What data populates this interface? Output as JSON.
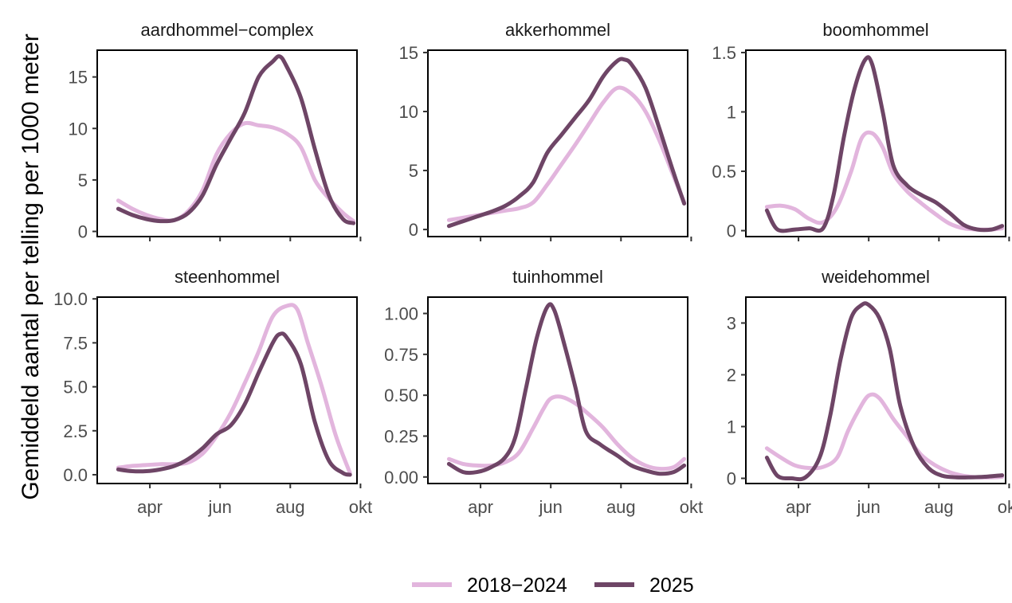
{
  "figure": {
    "ylabel": "Gemiddeld aantal per telling per 1000 meter",
    "x_ticks": [
      "apr",
      "jun",
      "aug",
      "okt"
    ],
    "legend": [
      {
        "label": "2018−2024",
        "color": "#e2b5dd"
      },
      {
        "label": "2025",
        "color": "#6e4566"
      }
    ]
  },
  "chart_data": [
    {
      "type": "line",
      "title": "aardhommel−complex",
      "xlim": [
        2.5,
        9.9
      ],
      "ylim": [
        -0.5,
        17.6
      ],
      "yticks": [
        0,
        5,
        10,
        15
      ],
      "x_ticks": [
        4,
        6,
        8,
        10
      ],
      "x_labels": [
        "apr",
        "jun",
        "aug",
        "okt"
      ],
      "show_x_labels": false,
      "series": [
        {
          "name": "2018−2024",
          "color": "#e2b5dd",
          "x": [
            3.1,
            3.5,
            3.9,
            4.3,
            4.7,
            5.1,
            5.5,
            5.9,
            6.3,
            6.7,
            7.1,
            7.5,
            7.9,
            8.3,
            8.7,
            9.1,
            9.5,
            9.8
          ],
          "y": [
            3.0,
            2.2,
            1.6,
            1.2,
            1.1,
            2.0,
            4.0,
            7.5,
            9.5,
            10.5,
            10.3,
            10.1,
            9.5,
            8.2,
            5.0,
            3.2,
            1.8,
            1.0
          ]
        },
        {
          "name": "2025",
          "color": "#6e4566",
          "x": [
            3.1,
            3.5,
            3.9,
            4.3,
            4.7,
            5.1,
            5.5,
            5.9,
            6.3,
            6.7,
            7.1,
            7.5,
            7.7,
            7.9,
            8.3,
            8.7,
            9.1,
            9.5,
            9.8
          ],
          "y": [
            2.2,
            1.6,
            1.2,
            1.0,
            1.1,
            1.8,
            3.5,
            6.5,
            9.0,
            11.5,
            15.0,
            16.5,
            17.0,
            16.0,
            13.0,
            8.0,
            3.5,
            1.2,
            0.8
          ]
        }
      ]
    },
    {
      "type": "line",
      "title": "akkerhommel",
      "xlim": [
        2.5,
        9.9
      ],
      "ylim": [
        -0.6,
        15.2
      ],
      "yticks": [
        0,
        5,
        10,
        15
      ],
      "x_ticks": [
        4,
        6,
        8,
        10
      ],
      "x_labels": [
        "apr",
        "jun",
        "aug",
        "okt"
      ],
      "show_x_labels": false,
      "series": [
        {
          "name": "2018−2024",
          "color": "#e2b5dd",
          "x": [
            3.1,
            3.5,
            3.9,
            4.3,
            4.7,
            5.1,
            5.5,
            5.9,
            6.3,
            6.7,
            7.1,
            7.5,
            7.9,
            8.3,
            8.7,
            9.1,
            9.5,
            9.8
          ],
          "y": [
            0.8,
            1.0,
            1.2,
            1.4,
            1.6,
            1.8,
            2.3,
            3.8,
            5.5,
            7.2,
            9.0,
            10.8,
            12.0,
            11.5,
            10.0,
            7.5,
            4.5,
            2.3
          ]
        },
        {
          "name": "2025",
          "color": "#6e4566",
          "x": [
            3.1,
            3.5,
            3.9,
            4.3,
            4.7,
            5.1,
            5.5,
            5.9,
            6.3,
            6.7,
            7.1,
            7.5,
            7.9,
            8.1,
            8.3,
            8.7,
            9.1,
            9.5,
            9.8
          ],
          "y": [
            0.3,
            0.7,
            1.1,
            1.5,
            2.0,
            2.8,
            4.0,
            6.5,
            8.0,
            9.5,
            11.0,
            13.0,
            14.3,
            14.4,
            14.0,
            12.0,
            8.5,
            4.8,
            2.2
          ]
        }
      ]
    },
    {
      "type": "line",
      "title": "boomhommel",
      "xlim": [
        2.5,
        9.9
      ],
      "ylim": [
        -0.05,
        1.52
      ],
      "yticks": [
        0.0,
        0.5,
        1.0,
        1.5
      ],
      "x_ticks": [
        4,
        6,
        8,
        10
      ],
      "x_labels": [
        "apr",
        "jun",
        "aug",
        "okt"
      ],
      "show_x_labels": false,
      "series": [
        {
          "name": "2018−2024",
          "color": "#e2b5dd",
          "x": [
            3.1,
            3.5,
            3.9,
            4.3,
            4.7,
            5.1,
            5.5,
            5.8,
            6.1,
            6.4,
            6.7,
            7.1,
            7.5,
            7.9,
            8.3,
            8.7,
            9.1,
            9.5,
            9.8
          ],
          "y": [
            0.2,
            0.21,
            0.18,
            0.1,
            0.07,
            0.2,
            0.5,
            0.78,
            0.82,
            0.7,
            0.48,
            0.33,
            0.23,
            0.14,
            0.06,
            0.02,
            0.01,
            0.01,
            0.02
          ]
        },
        {
          "name": "2025",
          "color": "#6e4566",
          "x": [
            3.1,
            3.4,
            3.9,
            4.3,
            4.7,
            5.0,
            5.3,
            5.6,
            5.9,
            6.1,
            6.4,
            6.7,
            7.1,
            7.5,
            7.9,
            8.3,
            8.7,
            9.1,
            9.5,
            9.8
          ],
          "y": [
            0.17,
            0.01,
            0.01,
            0.02,
            0.02,
            0.3,
            0.8,
            1.2,
            1.44,
            1.4,
            1.0,
            0.55,
            0.38,
            0.3,
            0.24,
            0.15,
            0.05,
            0.01,
            0.01,
            0.04
          ]
        }
      ]
    },
    {
      "type": "line",
      "title": "steenhommel",
      "xlim": [
        2.5,
        9.9
      ],
      "ylim": [
        -0.5,
        10.1
      ],
      "yticks": [
        0.0,
        2.5,
        5.0,
        7.5,
        10.0
      ],
      "ytick_labels": [
        "0.0",
        "2.5",
        "5.0",
        "7.5",
        "10.0"
      ],
      "x_ticks": [
        4,
        6,
        8,
        10
      ],
      "x_labels": [
        "apr",
        "jun",
        "aug",
        "okt"
      ],
      "show_x_labels": true,
      "series": [
        {
          "name": "2018−2024",
          "color": "#e2b5dd",
          "x": [
            3.1,
            3.5,
            3.9,
            4.3,
            4.7,
            5.1,
            5.5,
            5.9,
            6.3,
            6.7,
            7.1,
            7.5,
            7.9,
            8.2,
            8.5,
            8.9,
            9.3,
            9.7
          ],
          "y": [
            0.4,
            0.5,
            0.55,
            0.6,
            0.6,
            0.7,
            1.2,
            2.2,
            3.5,
            5.2,
            7.0,
            9.0,
            9.6,
            9.4,
            7.5,
            5.0,
            2.2,
            0.1
          ]
        },
        {
          "name": "2025",
          "color": "#6e4566",
          "x": [
            3.1,
            3.5,
            3.9,
            4.3,
            4.7,
            5.1,
            5.5,
            5.9,
            6.3,
            6.7,
            7.1,
            7.5,
            7.7,
            7.9,
            8.3,
            8.7,
            9.1,
            9.5,
            9.7
          ],
          "y": [
            0.3,
            0.2,
            0.2,
            0.3,
            0.5,
            0.9,
            1.5,
            2.3,
            2.8,
            4.0,
            5.8,
            7.5,
            8.0,
            7.8,
            6.3,
            3.0,
            0.8,
            0.1,
            0.0
          ]
        }
      ]
    },
    {
      "type": "line",
      "title": "tuinhommel",
      "xlim": [
        2.5,
        9.9
      ],
      "ylim": [
        -0.04,
        1.1
      ],
      "yticks": [
        0.0,
        0.25,
        0.5,
        0.75,
        1.0
      ],
      "ytick_labels": [
        "0.00",
        "0.25",
        "0.50",
        "0.75",
        "1.00"
      ],
      "x_ticks": [
        4,
        6,
        8,
        10
      ],
      "x_labels": [
        "apr",
        "jun",
        "aug",
        "okt"
      ],
      "show_x_labels": true,
      "series": [
        {
          "name": "2018−2024",
          "color": "#e2b5dd",
          "x": [
            3.1,
            3.5,
            3.9,
            4.3,
            4.7,
            5.1,
            5.5,
            5.8,
            6.0,
            6.3,
            6.7,
            7.1,
            7.5,
            7.9,
            8.3,
            8.7,
            9.1,
            9.5,
            9.8
          ],
          "y": [
            0.11,
            0.08,
            0.07,
            0.07,
            0.09,
            0.15,
            0.3,
            0.42,
            0.48,
            0.49,
            0.45,
            0.38,
            0.3,
            0.2,
            0.12,
            0.07,
            0.05,
            0.06,
            0.11
          ]
        },
        {
          "name": "2025",
          "color": "#6e4566",
          "x": [
            3.1,
            3.5,
            3.9,
            4.3,
            4.7,
            5.0,
            5.3,
            5.6,
            5.9,
            6.1,
            6.4,
            6.7,
            7.0,
            7.4,
            7.9,
            8.3,
            8.7,
            9.1,
            9.5,
            9.8
          ],
          "y": [
            0.08,
            0.03,
            0.03,
            0.06,
            0.12,
            0.25,
            0.55,
            0.85,
            1.04,
            1.02,
            0.8,
            0.55,
            0.28,
            0.2,
            0.13,
            0.07,
            0.04,
            0.02,
            0.03,
            0.07
          ]
        }
      ]
    },
    {
      "type": "line",
      "title": "weidehommel",
      "xlim": [
        2.5,
        9.9
      ],
      "ylim": [
        -0.1,
        3.5
      ],
      "yticks": [
        0,
        1,
        2,
        3
      ],
      "x_ticks": [
        4,
        6,
        8,
        10
      ],
      "x_labels": [
        "apr",
        "jun",
        "aug",
        "okt"
      ],
      "show_x_labels": true,
      "series": [
        {
          "name": "2018−2024",
          "color": "#e2b5dd",
          "x": [
            3.1,
            3.5,
            3.9,
            4.3,
            4.7,
            5.1,
            5.4,
            5.7,
            6.0,
            6.3,
            6.7,
            7.1,
            7.5,
            7.9,
            8.3,
            8.7,
            9.1,
            9.5,
            9.8
          ],
          "y": [
            0.58,
            0.4,
            0.25,
            0.2,
            0.22,
            0.4,
            0.9,
            1.3,
            1.6,
            1.55,
            1.15,
            0.8,
            0.45,
            0.25,
            0.12,
            0.05,
            0.02,
            0.02,
            0.03
          ]
        },
        {
          "name": "2025",
          "color": "#6e4566",
          "x": [
            3.1,
            3.4,
            3.8,
            4.2,
            4.6,
            4.9,
            5.2,
            5.5,
            5.8,
            6.0,
            6.3,
            6.6,
            6.9,
            7.3,
            7.7,
            8.1,
            8.5,
            8.9,
            9.3,
            9.8
          ],
          "y": [
            0.4,
            0.05,
            0.0,
            0.02,
            0.4,
            1.2,
            2.3,
            3.1,
            3.35,
            3.35,
            3.1,
            2.5,
            1.4,
            0.6,
            0.2,
            0.05,
            0.02,
            0.02,
            0.03,
            0.06
          ]
        }
      ]
    }
  ]
}
